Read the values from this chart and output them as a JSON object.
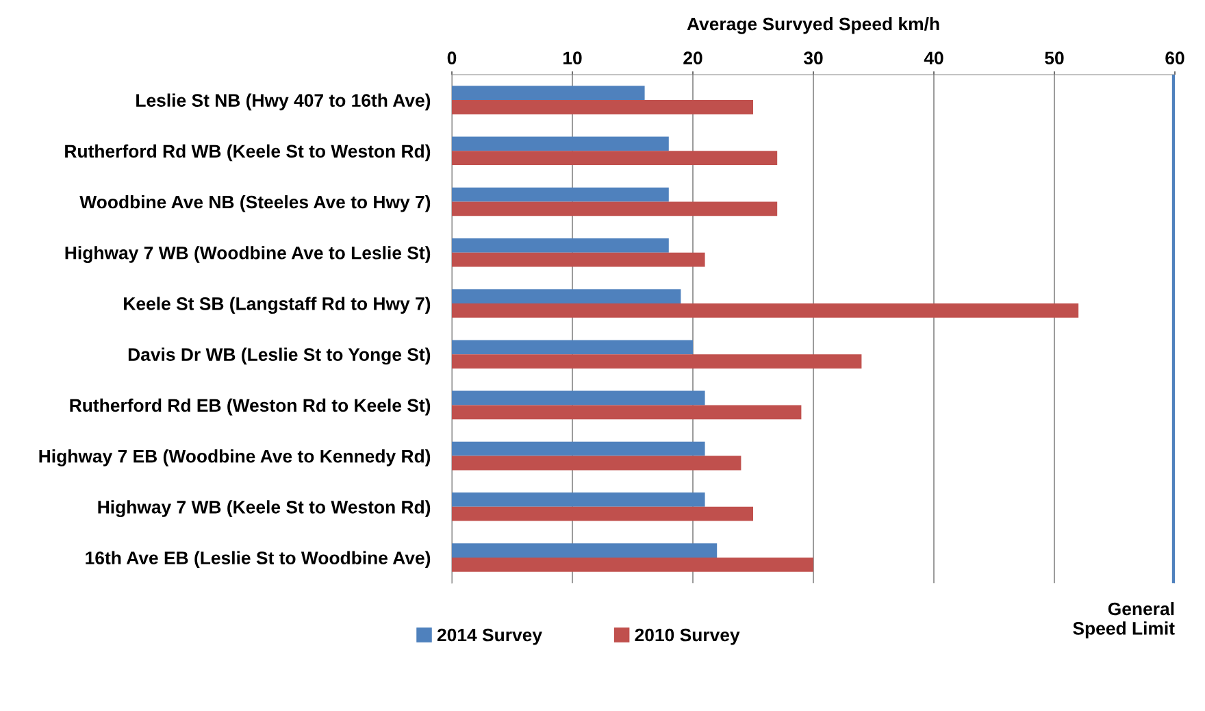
{
  "chart_data": {
    "type": "bar",
    "orientation": "horizontal",
    "xlabel": "Average Survyed Speed km/h",
    "categories": [
      "Leslie St NB (Hwy 407 to 16th Ave)",
      "Rutherford Rd WB (Keele St to Weston Rd)",
      "Woodbine Ave NB (Steeles Ave to Hwy 7)",
      "Highway 7 WB (Woodbine Ave to Leslie St)",
      "Keele St SB (Langstaff Rd to Hwy 7)",
      "Davis Dr WB (Leslie St to Yonge St)",
      "Rutherford Rd EB (Weston Rd to Keele St)",
      "Highway 7 EB (Woodbine Ave to Kennedy Rd)",
      "Highway 7 WB (Keele St to Weston Rd)",
      "16th Ave EB (Leslie St to Woodbine Ave)"
    ],
    "series": [
      {
        "name": "2014 Survey",
        "color": "#4f81bd",
        "values": [
          16,
          18,
          18,
          18,
          19,
          20,
          21,
          21,
          21,
          22
        ]
      },
      {
        "name": "2010 Survey",
        "color": "#c0504d",
        "values": [
          25,
          27,
          27,
          21,
          52,
          34,
          29,
          24,
          25,
          30
        ]
      }
    ],
    "xlim": [
      0,
      60
    ],
    "xticks": [
      0,
      10,
      20,
      30,
      40,
      50,
      60
    ],
    "grid": "x",
    "legend": "bottom",
    "ref_lines": [
      {
        "axis": "x",
        "value": 60,
        "label": "General\nSpeed Limit",
        "color": "#4f81bd"
      }
    ]
  }
}
